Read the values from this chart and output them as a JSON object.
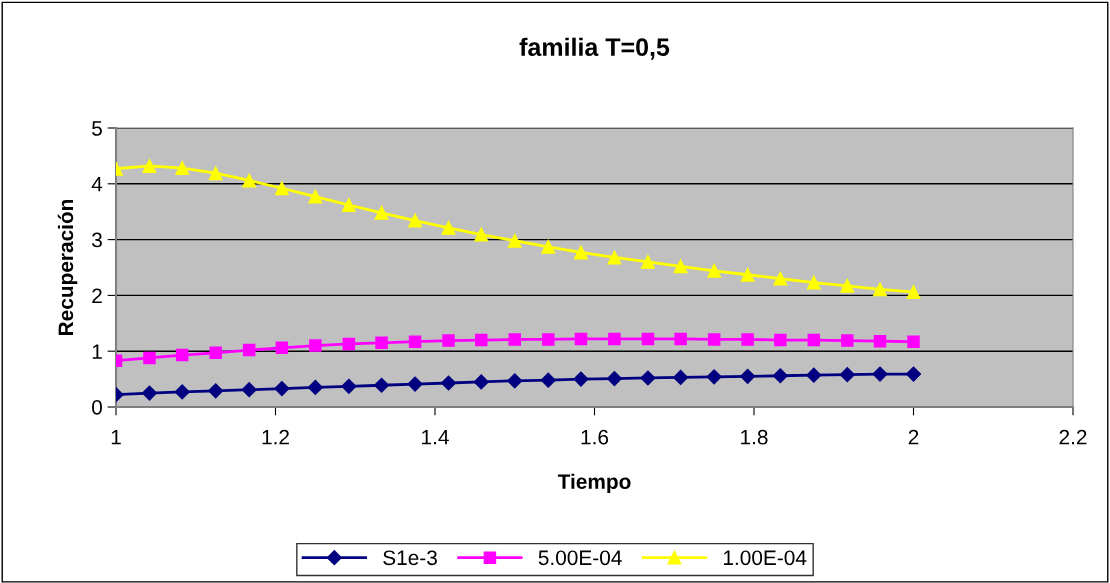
{
  "chart_data": {
    "type": "line",
    "title": "familia T=0,5",
    "xlabel": "Tiempo",
    "ylabel": "Recuperación",
    "x": [
      1,
      1.042,
      1.083,
      1.125,
      1.167,
      1.208,
      1.25,
      1.292,
      1.333,
      1.375,
      1.417,
      1.458,
      1.5,
      1.542,
      1.583,
      1.625,
      1.667,
      1.708,
      1.75,
      1.792,
      1.833,
      1.875,
      1.917,
      1.958,
      2
    ],
    "series": [
      {
        "name": "S1e-3",
        "color": "#000080",
        "marker": "diamond",
        "values": [
          0.22,
          0.25,
          0.27,
          0.29,
          0.31,
          0.33,
          0.35,
          0.37,
          0.39,
          0.41,
          0.43,
          0.45,
          0.47,
          0.48,
          0.5,
          0.51,
          0.52,
          0.53,
          0.54,
          0.55,
          0.56,
          0.57,
          0.58,
          0.59,
          0.59
        ]
      },
      {
        "name": "5.00E-04",
        "color": "#ff00ff",
        "marker": "square",
        "values": [
          0.83,
          0.88,
          0.93,
          0.97,
          1.02,
          1.06,
          1.1,
          1.13,
          1.15,
          1.17,
          1.19,
          1.2,
          1.21,
          1.21,
          1.22,
          1.22,
          1.22,
          1.22,
          1.21,
          1.21,
          1.2,
          1.2,
          1.19,
          1.18,
          1.17
        ]
      },
      {
        "name": "1.00E-04",
        "color": "#ffff00",
        "marker": "triangle",
        "values": [
          4.27,
          4.32,
          4.28,
          4.19,
          4.06,
          3.92,
          3.77,
          3.62,
          3.48,
          3.34,
          3.21,
          3.09,
          2.98,
          2.87,
          2.77,
          2.68,
          2.6,
          2.52,
          2.44,
          2.37,
          2.3,
          2.23,
          2.17,
          2.11,
          2.06
        ]
      }
    ],
    "xlim": [
      1,
      2.2
    ],
    "xticks": [
      1,
      1.2,
      1.4,
      1.6,
      1.8,
      2,
      2.2
    ],
    "ylim": [
      0,
      5
    ],
    "yticks": [
      0,
      1,
      2,
      3,
      4,
      5
    ],
    "grid": "y",
    "legend": "bottom",
    "line_style": "solid"
  }
}
